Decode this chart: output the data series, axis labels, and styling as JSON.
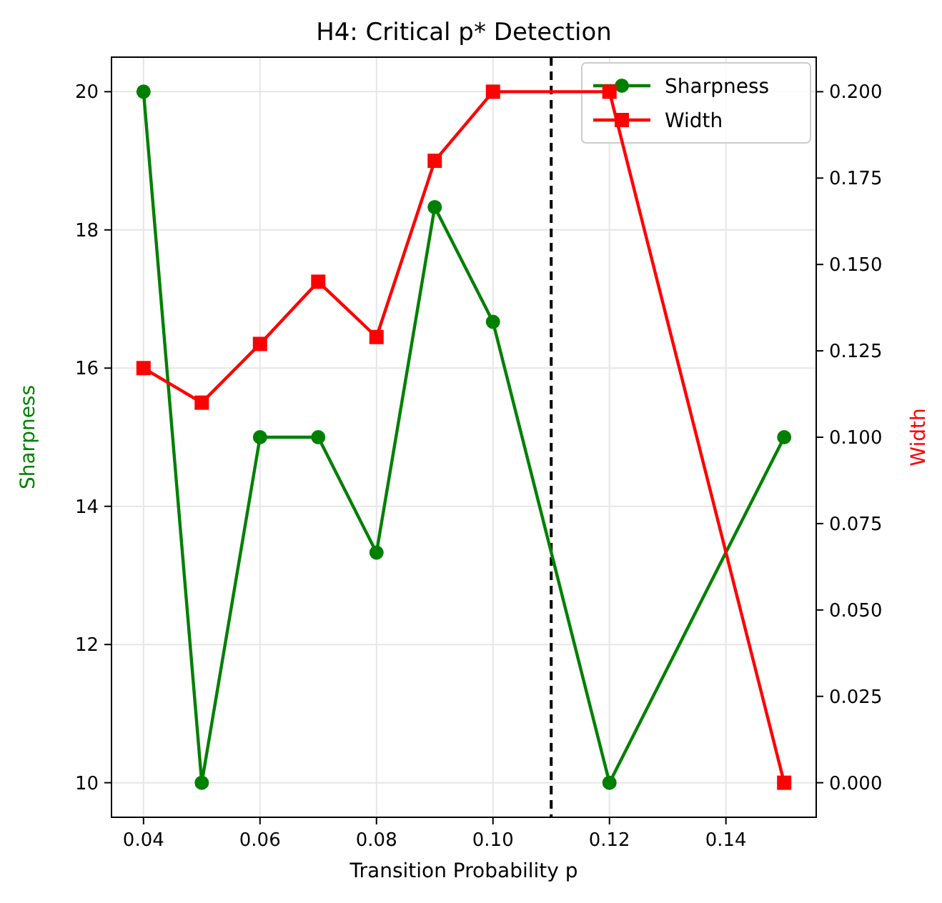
{
  "chart_data": {
    "type": "line",
    "title": "H4: Critical p* Detection",
    "xlabel": "Transition Probability p",
    "ylabel": "Sharpness",
    "y2label": "Width",
    "x": [
      0.04,
      0.05,
      0.06,
      0.07,
      0.08,
      0.09,
      0.1,
      0.12,
      0.15
    ],
    "series": [
      {
        "name": "Sharpness",
        "color": "#008000",
        "marker": "circle",
        "values": [
          20,
          10,
          15,
          15,
          13.33,
          18.33,
          16.67,
          10,
          15
        ]
      },
      {
        "name": "Width",
        "color": "#ff0000",
        "marker": "square",
        "axis": "y2",
        "values": [
          0.12,
          0.11,
          0.127,
          0.145,
          0.129,
          0.18,
          0.2,
          0.2,
          0
        ]
      }
    ],
    "xlim": [
      0.0345,
      0.1555
    ],
    "xticks": [
      {
        "value": 0.04,
        "label": "0.04"
      },
      {
        "value": 0.06,
        "label": "0.06"
      },
      {
        "value": 0.08,
        "label": "0.08"
      },
      {
        "value": 0.1,
        "label": "0.10"
      },
      {
        "value": 0.12,
        "label": "0.12"
      },
      {
        "value": 0.14,
        "label": "0.14"
      }
    ],
    "ylim": [
      9.5,
      20.5
    ],
    "yticks": [
      10,
      12,
      14,
      16,
      18,
      20
    ],
    "y2lim": [
      -0.01,
      0.21
    ],
    "y2ticks": [
      {
        "value": 0,
        "label": "0.000"
      },
      {
        "value": 0.025,
        "label": "0.025"
      },
      {
        "value": 0.05,
        "label": "0.050"
      },
      {
        "value": 0.075,
        "label": "0.075"
      },
      {
        "value": 0.1,
        "label": "0.100"
      },
      {
        "value": 0.125,
        "label": "0.125"
      },
      {
        "value": 0.15,
        "label": "0.150"
      },
      {
        "value": 0.175,
        "label": "0.175"
      },
      {
        "value": 0.2,
        "label": "0.200"
      }
    ],
    "ref_lines": [
      {
        "axis": "x",
        "value": 0.11,
        "color": "#000000",
        "line_style": "dashed"
      }
    ],
    "grid": true,
    "legend": "top right",
    "line_style": "solid"
  }
}
